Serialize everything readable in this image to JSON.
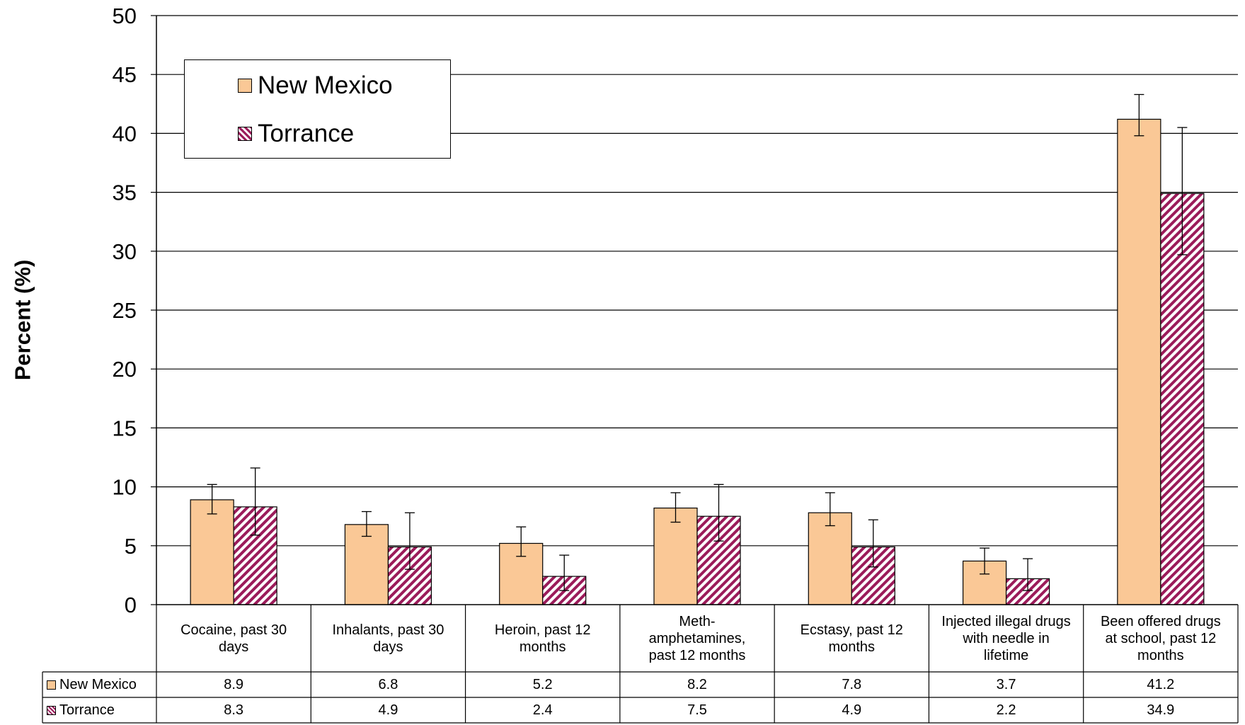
{
  "chart_data": {
    "type": "bar",
    "title": "",
    "ylabel": "Percent (%)",
    "xlabel": "",
    "ylim": [
      0,
      50
    ],
    "yticks": [
      0,
      5,
      10,
      15,
      20,
      25,
      30,
      35,
      40,
      45,
      50
    ],
    "grid": true,
    "legend_position": "top-left",
    "categories": [
      "Cocaine, past 30\ndays",
      "Inhalants, past 30\ndays",
      "Heroin, past 12\nmonths",
      "Meth-\namphetamines,\npast 12 months",
      "Ecstasy, past 12\nmonths",
      "Injected illegal drugs\nwith needle in\nlifetime",
      "Been offered drugs\nat school, past 12\nmonths"
    ],
    "series": [
      {
        "name": "New Mexico",
        "values": [
          8.9,
          6.8,
          5.2,
          8.2,
          7.8,
          3.7,
          41.2
        ],
        "values_text": [
          "8.9",
          "6.8",
          "5.2",
          "8.2",
          "7.8",
          "3.7",
          "41.2"
        ],
        "error_low": [
          7.7,
          5.8,
          4.1,
          7.0,
          6.7,
          2.6,
          39.8
        ],
        "error_high": [
          10.2,
          7.9,
          6.6,
          9.5,
          9.5,
          4.8,
          43.3
        ],
        "color": "#FAC896",
        "pattern": "solid"
      },
      {
        "name": "Torrance",
        "values": [
          8.3,
          4.9,
          2.4,
          7.5,
          4.9,
          2.2,
          34.9
        ],
        "values_text": [
          "8.3",
          "4.9",
          "2.4",
          "7.5",
          "4.9",
          "2.2",
          "34.9"
        ],
        "error_low": [
          5.9,
          3.0,
          1.2,
          5.4,
          3.2,
          1.2,
          29.7
        ],
        "error_high": [
          11.6,
          7.8,
          4.2,
          10.2,
          7.2,
          3.9,
          40.5
        ],
        "color": "#9B1B5A",
        "pattern": "diagonal-hatch"
      }
    ]
  }
}
